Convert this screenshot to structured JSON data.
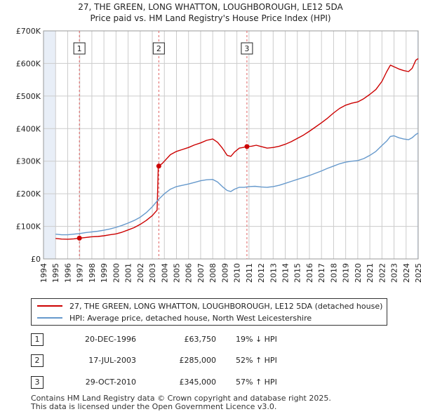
{
  "header": {
    "title_line1": "27, THE GREEN, LONG WHATTON, LOUGHBOROUGH, LE12 5DA",
    "title_line2": "Price paid vs. HM Land Registry's House Price Index (HPI)"
  },
  "colors": {
    "property": "#cc0000",
    "hpi": "#6699cc",
    "marker_line": "#e06060",
    "shade": "#e8eef7"
  },
  "chart_data": {
    "type": "line",
    "x_range": [
      1994,
      2025
    ],
    "y_range": [
      0,
      700000
    ],
    "y_ticks": [
      {
        "value": 0,
        "label": "£0"
      },
      {
        "value": 100000,
        "label": "£100K"
      },
      {
        "value": 200000,
        "label": "£200K"
      },
      {
        "value": 300000,
        "label": "£300K"
      },
      {
        "value": 400000,
        "label": "£400K"
      },
      {
        "value": 500000,
        "label": "£500K"
      },
      {
        "value": 600000,
        "label": "£600K"
      },
      {
        "value": 700000,
        "label": "£700K"
      }
    ],
    "x_ticks": [
      "1994",
      "1995",
      "1996",
      "1997",
      "1998",
      "1999",
      "2000",
      "2001",
      "2002",
      "2003",
      "2004",
      "2005",
      "2006",
      "2007",
      "2008",
      "2009",
      "2010",
      "2011",
      "2012",
      "2013",
      "2014",
      "2015",
      "2016",
      "2017",
      "2018",
      "2019",
      "2020",
      "2021",
      "2022",
      "2023",
      "2024",
      "2025"
    ],
    "shaded_ranges": [
      [
        1994,
        1995
      ],
      [
        2024.9,
        2025.2
      ]
    ],
    "series": [
      {
        "name": "27, THE GREEN, LONG WHATTON, LOUGHBOROUGH, LE12 5DA (detached house)",
        "key": "property",
        "points": [
          [
            1995.0,
            63000
          ],
          [
            1995.5,
            61000
          ],
          [
            1996.0,
            60500
          ],
          [
            1996.5,
            61500
          ],
          [
            1996.97,
            63750
          ],
          [
            1997.5,
            66000
          ],
          [
            1998.0,
            68000
          ],
          [
            1998.5,
            69000
          ],
          [
            1999.0,
            71000
          ],
          [
            1999.5,
            74000
          ],
          [
            2000.0,
            77000
          ],
          [
            2000.5,
            82000
          ],
          [
            2001.0,
            89000
          ],
          [
            2001.5,
            96000
          ],
          [
            2002.0,
            106000
          ],
          [
            2002.5,
            118000
          ],
          [
            2003.0,
            133000
          ],
          [
            2003.4,
            150000
          ],
          [
            2003.5,
            285000
          ],
          [
            2003.8,
            292000
          ],
          [
            2004.0,
            300000
          ],
          [
            2004.5,
            320000
          ],
          [
            2005.0,
            330000
          ],
          [
            2005.5,
            336000
          ],
          [
            2006.0,
            342000
          ],
          [
            2006.5,
            350000
          ],
          [
            2007.0,
            356000
          ],
          [
            2007.5,
            364000
          ],
          [
            2008.0,
            368000
          ],
          [
            2008.4,
            358000
          ],
          [
            2008.8,
            340000
          ],
          [
            2009.2,
            318000
          ],
          [
            2009.5,
            315000
          ],
          [
            2009.8,
            328000
          ],
          [
            2010.2,
            340000
          ],
          [
            2010.5,
            342000
          ],
          [
            2010.83,
            345000
          ],
          [
            2011.2,
            346000
          ],
          [
            2011.6,
            349000
          ],
          [
            2012.0,
            345000
          ],
          [
            2012.5,
            340000
          ],
          [
            2013.0,
            342000
          ],
          [
            2013.5,
            346000
          ],
          [
            2014.0,
            352000
          ],
          [
            2014.5,
            360000
          ],
          [
            2015.0,
            370000
          ],
          [
            2015.5,
            380000
          ],
          [
            2016.0,
            392000
          ],
          [
            2016.5,
            405000
          ],
          [
            2017.0,
            418000
          ],
          [
            2017.5,
            432000
          ],
          [
            2018.0,
            448000
          ],
          [
            2018.5,
            462000
          ],
          [
            2019.0,
            472000
          ],
          [
            2019.5,
            478000
          ],
          [
            2020.0,
            482000
          ],
          [
            2020.5,
            492000
          ],
          [
            2021.0,
            505000
          ],
          [
            2021.5,
            520000
          ],
          [
            2022.0,
            545000
          ],
          [
            2022.4,
            575000
          ],
          [
            2022.7,
            595000
          ],
          [
            2023.0,
            590000
          ],
          [
            2023.4,
            583000
          ],
          [
            2023.8,
            578000
          ],
          [
            2024.2,
            575000
          ],
          [
            2024.5,
            585000
          ],
          [
            2024.8,
            610000
          ],
          [
            2025.0,
            615000
          ]
        ]
      },
      {
        "name": "HPI: Average price, detached house, North West Leicestershire",
        "key": "hpi",
        "points": [
          [
            1995.0,
            76000
          ],
          [
            1995.5,
            74000
          ],
          [
            1996.0,
            74000
          ],
          [
            1996.5,
            76000
          ],
          [
            1997.0,
            78000
          ],
          [
            1997.5,
            81000
          ],
          [
            1998.0,
            83000
          ],
          [
            1998.5,
            85000
          ],
          [
            1999.0,
            88000
          ],
          [
            1999.5,
            92000
          ],
          [
            2000.0,
            97000
          ],
          [
            2000.5,
            103000
          ],
          [
            2001.0,
            110000
          ],
          [
            2001.5,
            118000
          ],
          [
            2002.0,
            128000
          ],
          [
            2002.5,
            142000
          ],
          [
            2003.0,
            160000
          ],
          [
            2003.5,
            182000
          ],
          [
            2004.0,
            200000
          ],
          [
            2004.5,
            214000
          ],
          [
            2005.0,
            222000
          ],
          [
            2005.5,
            226000
          ],
          [
            2006.0,
            230000
          ],
          [
            2006.5,
            235000
          ],
          [
            2007.0,
            240000
          ],
          [
            2007.5,
            243000
          ],
          [
            2008.0,
            244000
          ],
          [
            2008.4,
            236000
          ],
          [
            2008.8,
            222000
          ],
          [
            2009.2,
            210000
          ],
          [
            2009.5,
            207000
          ],
          [
            2009.8,
            214000
          ],
          [
            2010.2,
            220000
          ],
          [
            2010.6,
            220000
          ],
          [
            2011.0,
            222000
          ],
          [
            2011.5,
            223000
          ],
          [
            2012.0,
            221000
          ],
          [
            2012.5,
            220000
          ],
          [
            2013.0,
            222000
          ],
          [
            2013.5,
            226000
          ],
          [
            2014.0,
            232000
          ],
          [
            2014.5,
            238000
          ],
          [
            2015.0,
            244000
          ],
          [
            2015.5,
            250000
          ],
          [
            2016.0,
            256000
          ],
          [
            2016.5,
            263000
          ],
          [
            2017.0,
            270000
          ],
          [
            2017.5,
            278000
          ],
          [
            2018.0,
            285000
          ],
          [
            2018.5,
            292000
          ],
          [
            2019.0,
            297000
          ],
          [
            2019.5,
            300000
          ],
          [
            2020.0,
            302000
          ],
          [
            2020.5,
            308000
          ],
          [
            2021.0,
            318000
          ],
          [
            2021.5,
            330000
          ],
          [
            2022.0,
            348000
          ],
          [
            2022.4,
            362000
          ],
          [
            2022.7,
            376000
          ],
          [
            2023.0,
            378000
          ],
          [
            2023.4,
            372000
          ],
          [
            2023.8,
            368000
          ],
          [
            2024.2,
            366000
          ],
          [
            2024.5,
            372000
          ],
          [
            2024.8,
            382000
          ],
          [
            2025.0,
            386000
          ]
        ]
      }
    ],
    "sales": [
      {
        "label": "1",
        "x": 1996.97,
        "price": 63750,
        "date": "20-DEC-1996",
        "price_label": "£63,750",
        "hpi": "19% ↓ HPI"
      },
      {
        "label": "2",
        "x": 2003.54,
        "price": 285000,
        "date": "17-JUL-2003",
        "price_label": "£285,000",
        "hpi": "52% ↑ HPI"
      },
      {
        "label": "3",
        "x": 2010.83,
        "price": 345000,
        "date": "29-OCT-2010",
        "price_label": "£345,000",
        "hpi": "57% ↑ HPI"
      }
    ]
  },
  "legend": {
    "property_label": "27, THE GREEN, LONG WHATTON, LOUGHBOROUGH, LE12 5DA (detached house)",
    "hpi_label": "HPI: Average price, detached house, North West Leicestershire"
  },
  "footer": {
    "line1": "Contains HM Land Registry data © Crown copyright and database right 2025.",
    "line2": "This data is licensed under the Open Government Licence v3.0."
  }
}
